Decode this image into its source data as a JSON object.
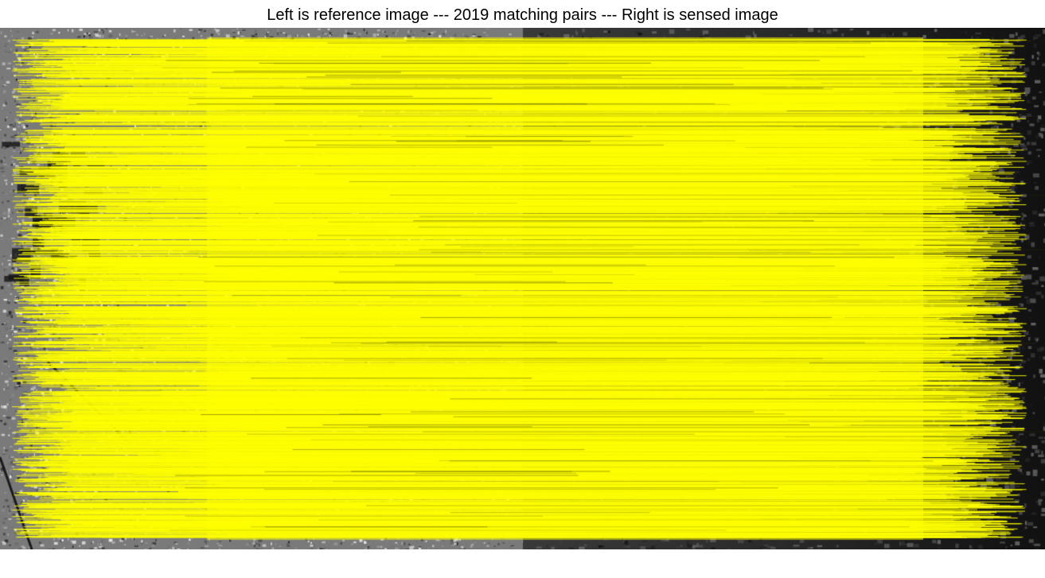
{
  "figure": {
    "title": "Left is reference image --- 2019 matching pairs --- Right is sensed image",
    "match_count": 2019,
    "left_panel": "reference image",
    "right_panel": "sensed image"
  },
  "colors": {
    "match_line": "#ffff00",
    "background": "#ffffff",
    "title_text": "#000000"
  }
}
